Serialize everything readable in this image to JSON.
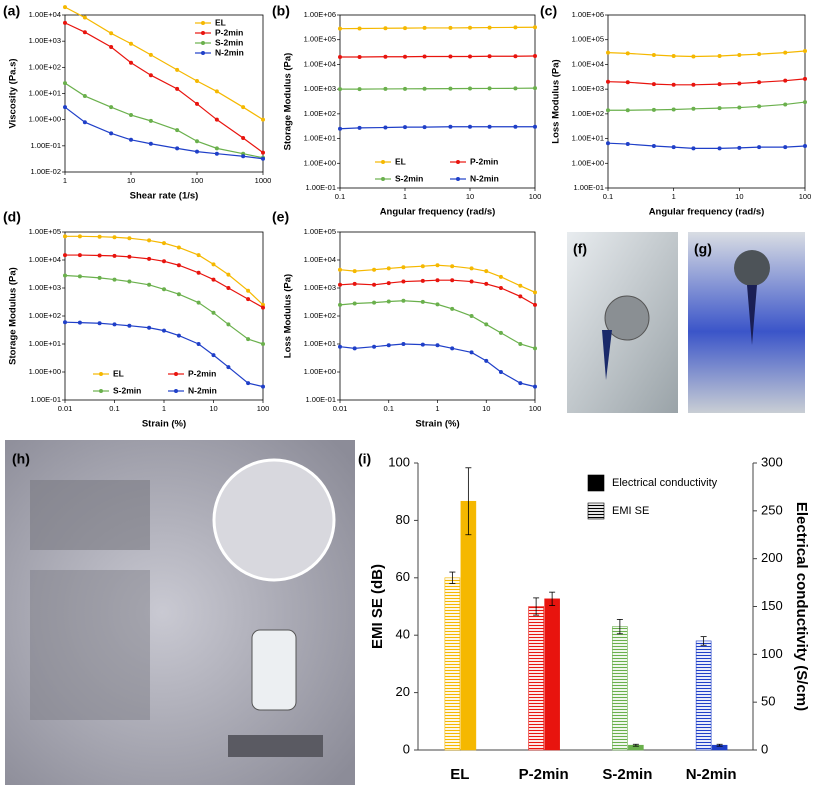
{
  "chart_data": [
    {
      "type": "line",
      "panel": "(a)",
      "xlabel": "Shear rate (1/s)",
      "ylabel": "Viscosity (Pa.s)",
      "xscale": "log",
      "yscale": "log",
      "x": [
        1,
        2,
        5,
        10,
        20,
        50,
        100,
        200,
        500,
        1000
      ],
      "series": [
        {
          "name": "EL",
          "color": "#f5b800",
          "values": [
            20000,
            8000,
            2000,
            800,
            300,
            80,
            30,
            12,
            3,
            1
          ]
        },
        {
          "name": "P-2min",
          "color": "#e8140e",
          "values": [
            5000,
            2200,
            600,
            150,
            50,
            15,
            4,
            1,
            0.2,
            0.055
          ]
        },
        {
          "name": "S-2min",
          "color": "#6ab04c",
          "values": [
            25,
            8,
            3,
            1.5,
            0.9,
            0.4,
            0.15,
            0.08,
            0.05,
            0.035
          ]
        },
        {
          "name": "N-2min",
          "color": "#1f3fc8",
          "values": [
            3,
            0.8,
            0.3,
            0.17,
            0.12,
            0.08,
            0.06,
            0.05,
            0.04,
            0.032
          ]
        }
      ],
      "xlim": [
        1,
        1000
      ],
      "xticks": [
        1,
        10,
        100,
        1000
      ],
      "ylim": [
        0.01,
        10000
      ],
      "yticks": [
        {
          "value": 0.01,
          "label": "1.00E-02"
        },
        {
          "value": 0.1,
          "label": "1.00E-01"
        },
        {
          "value": 1,
          "label": "1.00E+00"
        },
        {
          "value": 10,
          "label": "1.00E+01"
        },
        {
          "value": 100,
          "label": "1.00E+02"
        },
        {
          "value": 1000,
          "label": "1.00E+03"
        },
        {
          "value": 10000,
          "label": "1.00E+04"
        }
      ],
      "legend": "upper right"
    },
    {
      "type": "line",
      "panel": "(b)",
      "xlabel": "Angular frequency (rad/s)",
      "ylabel": "Storage Modulus (Pa)",
      "xscale": "log",
      "yscale": "log",
      "x": [
        0.1,
        0.2,
        0.5,
        1,
        2,
        5,
        10,
        20,
        50,
        100
      ],
      "series": [
        {
          "name": "EL",
          "color": "#f5b800",
          "values": [
            280000,
            285000,
            290000,
            295000,
            300000,
            300000,
            305000,
            310000,
            315000,
            320000
          ]
        },
        {
          "name": "P-2min",
          "color": "#e8140e",
          "values": [
            20000,
            20000,
            20500,
            20500,
            21000,
            21000,
            21000,
            21500,
            21500,
            22000
          ]
        },
        {
          "name": "S-2min",
          "color": "#6ab04c",
          "values": [
            1000,
            1000,
            1020,
            1030,
            1040,
            1050,
            1060,
            1070,
            1080,
            1100
          ]
        },
        {
          "name": "N-2min",
          "color": "#1f3fc8",
          "values": [
            25,
            27,
            28,
            29,
            29,
            30,
            30,
            30,
            30,
            30
          ]
        }
      ],
      "xlim": [
        0.1,
        100
      ],
      "xticks": [
        0.1,
        1,
        10,
        100
      ],
      "ylim": [
        0.1,
        1000000
      ],
      "yticks": [
        {
          "value": 0.1,
          "label": "1.00E-01"
        },
        {
          "value": 1,
          "label": "1.00E+00"
        },
        {
          "value": 10,
          "label": "1.00E+01"
        },
        {
          "value": 100,
          "label": "1.00E+02"
        },
        {
          "value": 1000,
          "label": "1.00E+03"
        },
        {
          "value": 10000,
          "label": "1.00E+04"
        },
        {
          "value": 100000,
          "label": "1.00E+05"
        },
        {
          "value": 1000000,
          "label": "1.00E+06"
        }
      ],
      "legend": "lower center"
    },
    {
      "type": "line",
      "panel": "(c)",
      "xlabel": "Angular frequency (rad/s)",
      "ylabel": "Loss Modulus (Pa)",
      "xscale": "log",
      "yscale": "log",
      "x": [
        0.1,
        0.2,
        0.5,
        1,
        2,
        5,
        10,
        20,
        50,
        100
      ],
      "series": [
        {
          "color": "#f5b800",
          "values": [
            30000,
            28000,
            24000,
            22000,
            21000,
            22000,
            24000,
            26000,
            30000,
            35000
          ]
        },
        {
          "color": "#e8140e",
          "values": [
            2000,
            1900,
            1600,
            1500,
            1500,
            1600,
            1700,
            1900,
            2200,
            2600
          ]
        },
        {
          "color": "#6ab04c",
          "values": [
            140,
            140,
            145,
            150,
            160,
            170,
            180,
            200,
            240,
            300
          ]
        },
        {
          "color": "#1f3fc8",
          "values": [
            6.5,
            6,
            5,
            4.5,
            4,
            4,
            4.2,
            4.5,
            4.5,
            5
          ]
        }
      ],
      "xlim": [
        0.1,
        100
      ],
      "xticks": [
        0.1,
        1,
        10,
        100
      ],
      "ylim": [
        0.1,
        1000000
      ],
      "yticks": [
        {
          "value": 0.1,
          "label": "1.00E-01"
        },
        {
          "value": 1,
          "label": "1.00E+00"
        },
        {
          "value": 10,
          "label": "1.00E+01"
        },
        {
          "value": 100,
          "label": "1.00E+02"
        },
        {
          "value": 1000,
          "label": "1.00E+03"
        },
        {
          "value": 10000,
          "label": "1.00E+04"
        },
        {
          "value": 100000,
          "label": "1.00E+05"
        },
        {
          "value": 1000000,
          "label": "1.00E+06"
        }
      ]
    },
    {
      "type": "line",
      "panel": "(d)",
      "xlabel": "Strain (%)",
      "ylabel": "Storage Modulus (Pa)",
      "xscale": "log",
      "yscale": "log",
      "x": [
        0.01,
        0.02,
        0.05,
        0.1,
        0.2,
        0.5,
        1,
        2,
        5,
        10,
        20,
        50,
        100
      ],
      "series": [
        {
          "name": "EL",
          "color": "#f5b800",
          "values": [
            70000,
            70000,
            68000,
            65000,
            60000,
            50000,
            40000,
            28000,
            15000,
            7000,
            3000,
            800,
            250
          ]
        },
        {
          "name": "P-2min",
          "color": "#e8140e",
          "values": [
            15000,
            15000,
            14500,
            14000,
            13000,
            11000,
            9000,
            6500,
            3500,
            2000,
            1000,
            400,
            200
          ]
        },
        {
          "name": "S-2min",
          "color": "#6ab04c",
          "values": [
            2800,
            2600,
            2300,
            2000,
            1700,
            1300,
            900,
            600,
            300,
            130,
            50,
            15,
            10
          ]
        },
        {
          "name": "N-2min",
          "color": "#1f3fc8",
          "values": [
            60,
            58,
            55,
            50,
            45,
            38,
            30,
            20,
            10,
            4,
            1.5,
            0.4,
            0.3
          ]
        }
      ],
      "xlim": [
        0.01,
        100
      ],
      "xticks": [
        0.01,
        0.1,
        1,
        10,
        100
      ],
      "ylim": [
        0.1,
        100000
      ],
      "yticks": [
        {
          "value": 0.1,
          "label": "1.00E-01"
        },
        {
          "value": 1,
          "label": "1.00E+00"
        },
        {
          "value": 10,
          "label": "1.00E+01"
        },
        {
          "value": 100,
          "label": "1.00E+02"
        },
        {
          "value": 1000,
          "label": "1.00E+03"
        },
        {
          "value": 10000,
          "label": "1.00E+04"
        },
        {
          "value": 100000,
          "label": "1.00E+05"
        }
      ],
      "legend": "lower left"
    },
    {
      "type": "line",
      "panel": "(e)",
      "xlabel": "Strain (%)",
      "ylabel": "Loss Modulus (Pa)",
      "xscale": "log",
      "yscale": "log",
      "x": [
        0.01,
        0.02,
        0.05,
        0.1,
        0.2,
        0.5,
        1,
        2,
        5,
        10,
        20,
        50,
        100
      ],
      "series": [
        {
          "color": "#f5b800",
          "values": [
            4500,
            4000,
            4500,
            5000,
            5500,
            6000,
            6500,
            6000,
            5000,
            4000,
            2500,
            1200,
            700
          ]
        },
        {
          "color": "#e8140e",
          "values": [
            1300,
            1400,
            1300,
            1500,
            1700,
            1800,
            1900,
            1900,
            1700,
            1400,
            1000,
            500,
            250
          ]
        },
        {
          "color": "#6ab04c",
          "values": [
            250,
            280,
            300,
            330,
            350,
            320,
            260,
            180,
            100,
            50,
            25,
            10,
            7
          ]
        },
        {
          "color": "#1f3fc8",
          "values": [
            8,
            7,
            8,
            9,
            10,
            9.5,
            9,
            7,
            5,
            2.5,
            1,
            0.4,
            0.3
          ]
        }
      ],
      "xlim": [
        0.01,
        100
      ],
      "xticks": [
        0.01,
        0.1,
        1,
        10,
        100
      ],
      "ylim": [
        0.1,
        100000
      ],
      "yticks": [
        {
          "value": 0.1,
          "label": "1.00E-01"
        },
        {
          "value": 1,
          "label": "1.00E+00"
        },
        {
          "value": 10,
          "label": "1.00E+01"
        },
        {
          "value": 100,
          "label": "1.00E+02"
        },
        {
          "value": 1000,
          "label": "1.00E+03"
        },
        {
          "value": 10000,
          "label": "1.00E+04"
        },
        {
          "value": 100000,
          "label": "1.00E+05"
        }
      ]
    },
    {
      "type": "bar",
      "panel": "(i)",
      "ylabel": "EMI SE (dB)",
      "y2label": "Electrical conductivity (S/cm)",
      "categories": [
        "EL",
        "P-2min",
        "S-2min",
        "N-2min"
      ],
      "category_colors": [
        "#f5b800",
        "#e8140e",
        "#6ab04c",
        "#1f3fc8"
      ],
      "series": [
        {
          "name": "Electrical conductivity",
          "axis": "y2",
          "values": [
            260,
            158,
            5,
            5
          ],
          "errors": [
            35,
            7,
            1,
            1
          ]
        },
        {
          "name": "EMI SE",
          "hatched": true,
          "values": [
            60,
            50,
            43,
            38
          ],
          "errors": [
            2,
            3,
            2.5,
            1.5
          ]
        }
      ],
      "ylim": [
        0,
        100
      ],
      "yticks": [
        0,
        20,
        40,
        60,
        80,
        100
      ],
      "y2lim": [
        0,
        300
      ],
      "y2ticks": [
        0,
        50,
        100,
        150,
        200,
        250,
        300
      ],
      "legend": "upper right"
    }
  ],
  "images": [
    {
      "label": "(f)"
    },
    {
      "label": "(g)"
    },
    {
      "label": "(h)"
    }
  ]
}
